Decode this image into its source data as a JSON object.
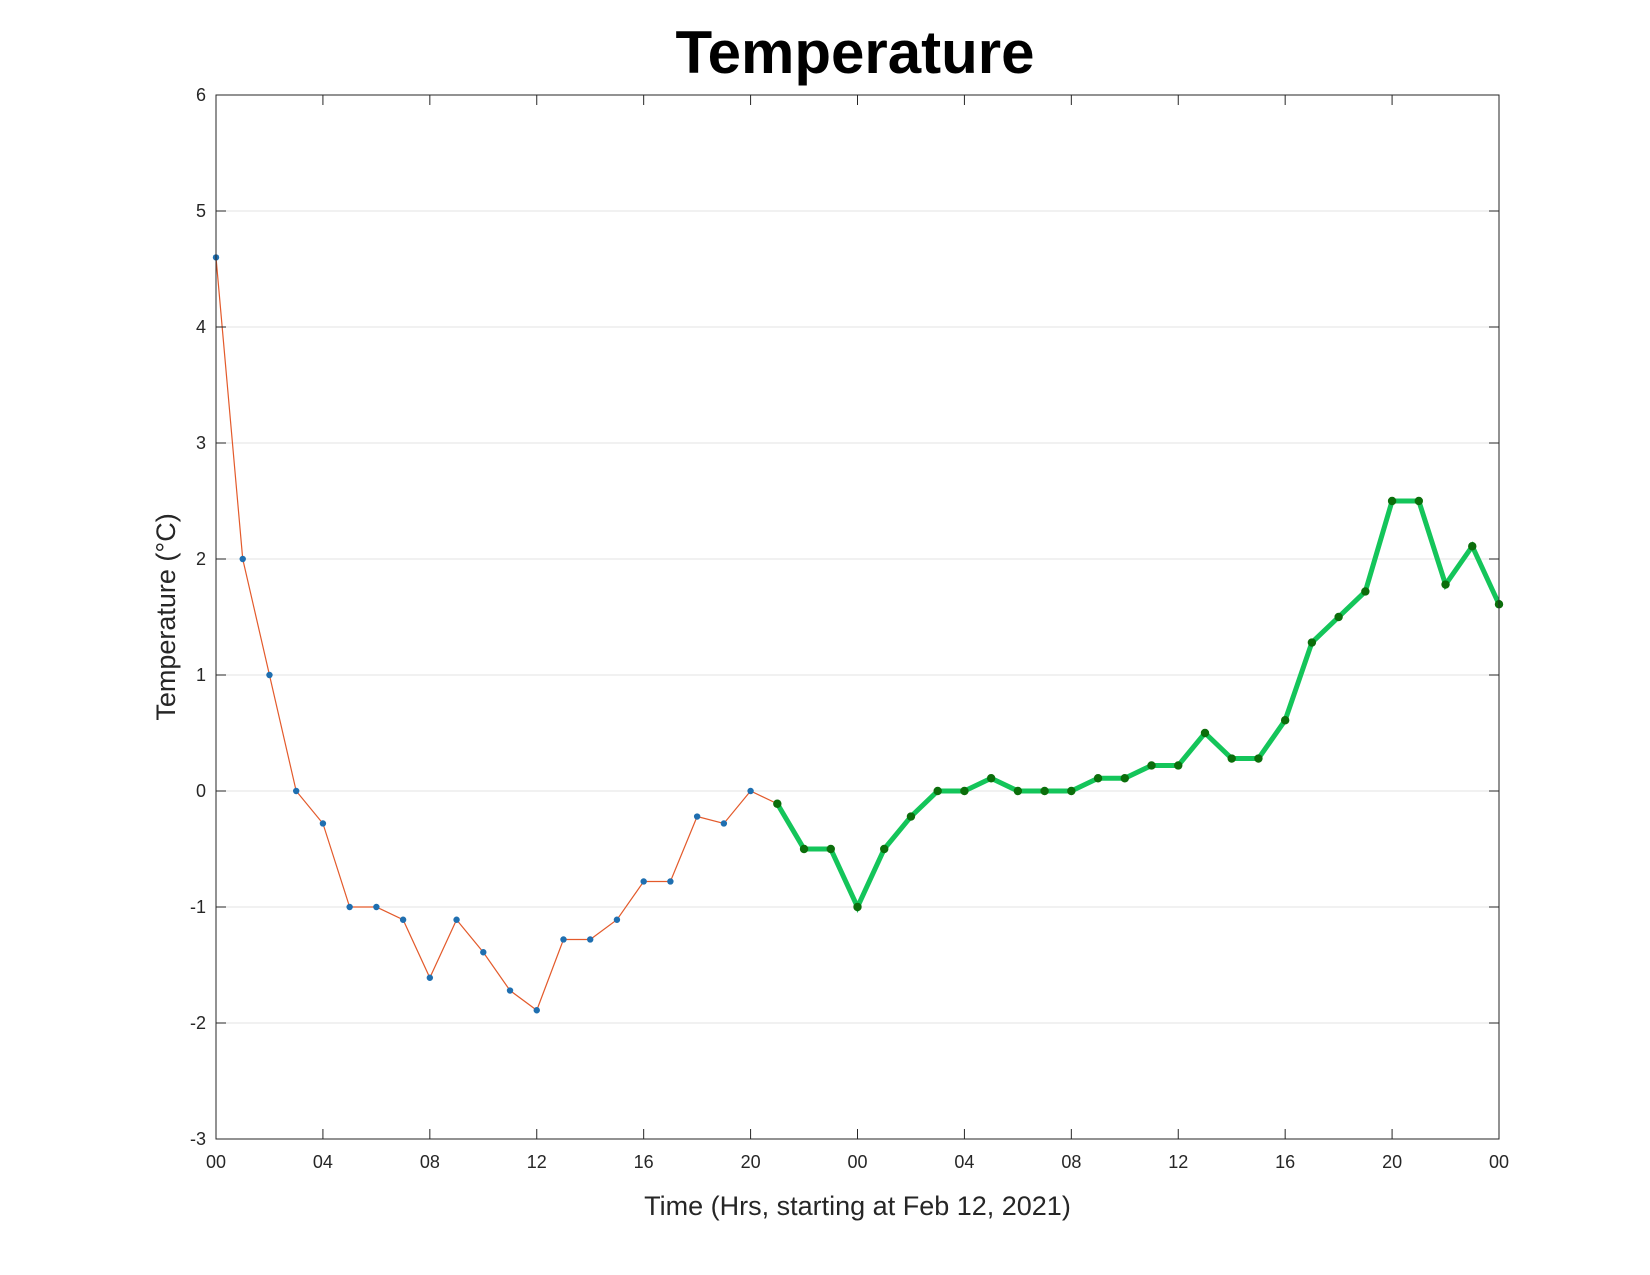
{
  "chart_data": {
    "type": "line",
    "title": "Temperature",
    "xlabel": "Time (Hrs, starting at Feb 12, 2021)",
    "ylabel": "Temperature (°C)",
    "x_tick_labels": [
      "00",
      "04",
      "08",
      "12",
      "16",
      "20",
      "00",
      "04",
      "08",
      "12",
      "16",
      "20",
      "00"
    ],
    "x_tick_hours": [
      0,
      4,
      8,
      12,
      16,
      20,
      24,
      28,
      32,
      36,
      40,
      44,
      48
    ],
    "x_range_hours": [
      0,
      48
    ],
    "y_ticks": [
      6,
      5,
      4,
      3,
      2,
      1,
      0,
      -1,
      -2,
      -3
    ],
    "ylim": [
      -3,
      6
    ],
    "grid": "horizontal",
    "series": [
      {
        "line_color": "#e35a2b",
        "marker_color": "#1f6fb0",
        "line_style": "thin",
        "x_hours": [
          0,
          1,
          2,
          3,
          4,
          5,
          6,
          7,
          8,
          9,
          10,
          11,
          12,
          13,
          14,
          15,
          16,
          17,
          18,
          19,
          20,
          21
        ],
        "values": [
          4.6,
          2.0,
          1.0,
          0.0,
          -0.28,
          -1.0,
          -1.0,
          -1.11,
          -1.61,
          -1.11,
          -1.39,
          -1.72,
          -1.89,
          -1.28,
          -1.28,
          -1.11,
          -0.78,
          -0.78,
          -0.22,
          -0.28,
          0.0,
          -0.11
        ]
      },
      {
        "line_color": "#14c55a",
        "marker_color": "#0b6e0b",
        "line_style": "thick",
        "x_hours": [
          21,
          22,
          23,
          24,
          25,
          26,
          27,
          28,
          29,
          30,
          31,
          32,
          33,
          34,
          35,
          36,
          37,
          38,
          39,
          40,
          41,
          42,
          43,
          44,
          45,
          46,
          47,
          48
        ],
        "values": [
          -0.11,
          -0.5,
          -0.5,
          -1.0,
          -0.5,
          -0.22,
          0.0,
          0.0,
          0.11,
          0.0,
          0.0,
          0.0,
          0.11,
          0.11,
          0.22,
          0.22,
          0.5,
          0.28,
          0.28,
          0.61,
          1.28,
          1.5,
          1.72,
          2.5,
          2.5,
          1.78,
          2.11,
          1.61
        ]
      }
    ]
  }
}
